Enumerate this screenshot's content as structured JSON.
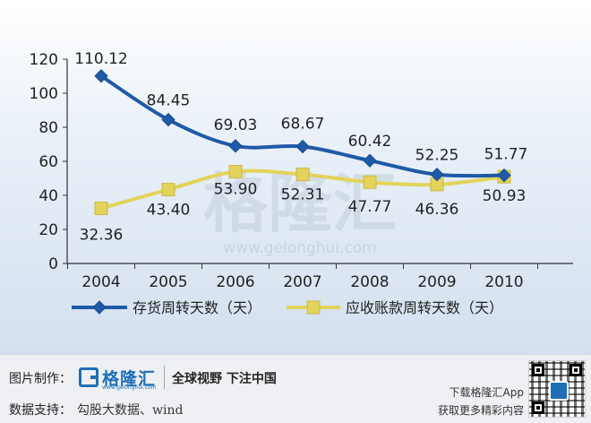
{
  "chart_data": {
    "type": "line",
    "title": "",
    "xlabel": "",
    "ylabel": "",
    "categories": [
      "2004",
      "2005",
      "2006",
      "2007",
      "2008",
      "2009",
      "2010"
    ],
    "ylim": [
      0,
      120
    ],
    "yticks": [
      "0",
      "20",
      "40",
      "60",
      "80",
      "100",
      "120"
    ],
    "grid": false,
    "legend_position": "bottom",
    "series": [
      {
        "name": "存货周转天数（天）",
        "color": "#1f5aa6",
        "marker": "diamond",
        "values": [
          110.12,
          84.45,
          69.03,
          68.67,
          60.42,
          52.25,
          51.77
        ],
        "labels": [
          "110.12",
          "84.45",
          "69.03",
          "68.67",
          "60.42",
          "52.25",
          "51.77"
        ]
      },
      {
        "name": "应收账款周转天数（天）",
        "color": "#e2d35a",
        "marker": "square",
        "values": [
          32.36,
          43.4,
          53.9,
          52.31,
          47.77,
          46.36,
          50.93
        ],
        "labels": [
          "32.36",
          "43.40",
          "53.90",
          "52.31",
          "47.77",
          "46.36",
          "50.93"
        ]
      }
    ],
    "watermark": "格隆汇",
    "watermark_url": "www.gelonghui.com"
  },
  "footer": {
    "made_by_label": "图片制作：",
    "brand_name": "格隆汇",
    "brand_url": "www.gelonghui.com",
    "slogan": "全球视野 下注中国",
    "data_label": "数据支持：",
    "data_value": "勾股大数据、wind",
    "promo_line1": "下载格隆汇App",
    "promo_line2": "获取更多精彩内容"
  }
}
